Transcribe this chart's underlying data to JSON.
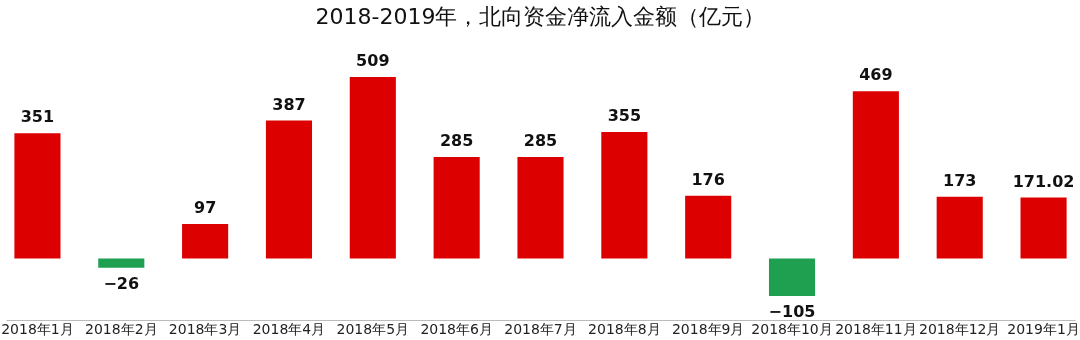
{
  "chart_data": {
    "type": "bar",
    "title": "2018-2019年，北向资金净流入金额（亿元）",
    "categories": [
      "2018年1月",
      "2018年2月",
      "2018年3月",
      "2018年4月",
      "2018年5月",
      "2018年6月",
      "2018年7月",
      "2018年8月",
      "2018年9月",
      "2018年10月",
      "2018年11月",
      "2018年12月",
      "2019年1月"
    ],
    "values": [
      351,
      -26,
      97,
      387,
      509,
      285,
      285,
      355,
      176,
      -105,
      469,
      173,
      171.02
    ],
    "colors": [
      "#dd0000",
      "#1ea050",
      "#dd0000",
      "#dd0000",
      "#dd0000",
      "#dd0000",
      "#dd0000",
      "#dd0000",
      "#dd0000",
      "#1ea050",
      "#dd0000",
      "#dd0000",
      "#dd0000"
    ],
    "data_labels": true
  }
}
